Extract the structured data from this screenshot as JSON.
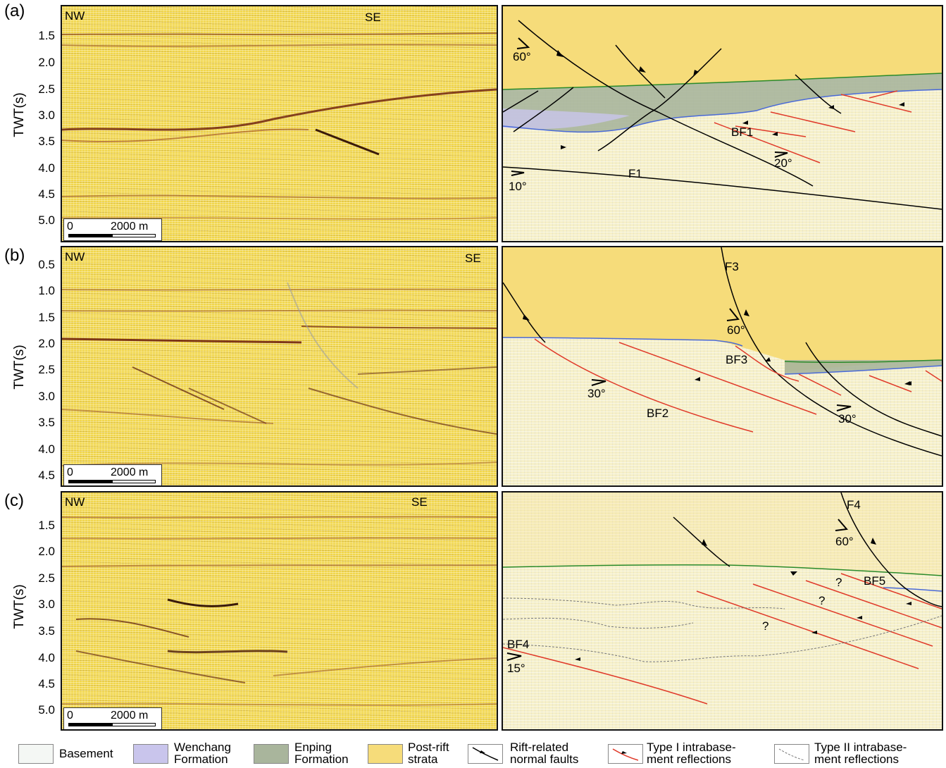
{
  "panels": [
    {
      "label": "(a)",
      "left_dir": "NW",
      "right_dir": "SE",
      "ticks": [
        "1.5",
        "2.0",
        "2.5",
        "3.0",
        "3.5",
        "4.0",
        "4.5",
        "5.0"
      ],
      "scale_start": "0",
      "scale_end": "2000 m",
      "annotations": {
        "a1": "60°",
        "a2": "20°",
        "a3": "10°",
        "bf": "BF1",
        "f": "F1"
      }
    },
    {
      "label": "(b)",
      "left_dir": "NW",
      "right_dir": "SE",
      "ticks": [
        "0.5",
        "1.0",
        "1.5",
        "2.0",
        "2.5",
        "3.0",
        "3.5",
        "4.0",
        "4.5"
      ],
      "scale_start": "0",
      "scale_end": "2000 m",
      "annotations": {
        "a1": "60°",
        "a2": "30°",
        "a3": "30°",
        "bf2": "BF2",
        "bf3": "BF3",
        "f": "F3"
      }
    },
    {
      "label": "(c)",
      "left_dir": "NW",
      "right_dir": "SE",
      "ticks": [
        "1.5",
        "2.0",
        "2.5",
        "3.0",
        "3.5",
        "4.0",
        "4.5",
        "5.0"
      ],
      "scale_start": "0",
      "scale_end": "2000 m",
      "annotations": {
        "a1": "60°",
        "a2": "15°",
        "bf4": "BF4",
        "bf5": "BF5",
        "f": "F4",
        "q": "?"
      }
    }
  ],
  "axis_title": "TWT(s)",
  "legend": [
    {
      "label1": "Basement",
      "label2": "",
      "color": "#f4f7f4"
    },
    {
      "label1": "Wenchang",
      "label2": "Formation",
      "color": "#c9c5ec"
    },
    {
      "label1": "Enping",
      "label2": "Formation",
      "color": "#a9b59c"
    },
    {
      "label1": "Post-rift",
      "label2": "strata",
      "color": "#f6dc7a"
    },
    {
      "label1": "Rift-related",
      "label2": "normal faults",
      "color": "#000000"
    },
    {
      "label1": "Type I intrabase-",
      "label2": "ment reflections",
      "color": "#e03a2a"
    },
    {
      "label1": "Type II intrabase-",
      "label2": "ment reflections",
      "color": "#777777"
    }
  ]
}
